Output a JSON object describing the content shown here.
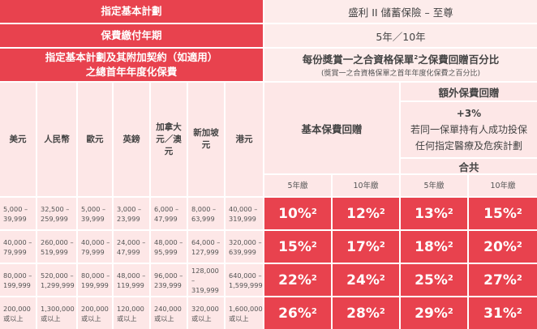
{
  "header": {
    "plan_label": "指定基本計劃",
    "plan_value": "盛利 II 儲蓄保險 – 至尊",
    "term_label": "保費繳付年期",
    "term_value": "5年／10年",
    "premium_label_line1": "指定基本計劃及其附加契約（如適用）",
    "premium_label_line2": "之總首年年度化保費",
    "rebate_title": "每份獎賞一之合資格保單",
    "rebate_title_sup": "2",
    "rebate_title_tail": "之保費回贈百分比",
    "rebate_subtitle": "(獎賞一之合資格保單之首年年度化保費之百分比)"
  },
  "currencies": [
    "美元",
    "人民幣",
    "歐元",
    "英鎊",
    "加拿大元／澳元",
    "新加坡元",
    "港元"
  ],
  "columns": {
    "basic_rebate": "基本保費回贈",
    "extra_rebate": "額外保費回贈",
    "extra_plus": "+3%",
    "extra_desc_line1": "若同一保單持有人成功投保",
    "extra_desc_line2": "任何指定醫療及危疾計劃",
    "total": "合共",
    "term5": "5年繳",
    "term10": "10年繳"
  },
  "rows": [
    {
      "ranges": [
        [
          "5,000 –",
          "39,999"
        ],
        [
          "32,500 –",
          "259,999"
        ],
        [
          "5,000 –",
          "39,999"
        ],
        [
          "3,000 –",
          "23,999"
        ],
        [
          "6,000 –",
          "47,999"
        ],
        [
          "8,000 –",
          "63,999"
        ],
        [
          "40,000 –",
          "319,999"
        ]
      ],
      "rates": [
        "10%",
        "12%",
        "13%",
        "15%"
      ],
      "sup": "2"
    },
    {
      "ranges": [
        [
          "40,000 –",
          "79,999"
        ],
        [
          "260,000 –",
          "519,999"
        ],
        [
          "40,000 –",
          "79,999"
        ],
        [
          "24,000 –",
          "47,999"
        ],
        [
          "48,000 –",
          "95,999"
        ],
        [
          "64,000 –",
          "127,999"
        ],
        [
          "320,000 –",
          "639,999"
        ]
      ],
      "rates": [
        "15%",
        "17%",
        "18%",
        "20%"
      ],
      "sup": "2"
    },
    {
      "ranges": [
        [
          "80,000 –",
          "199,999"
        ],
        [
          "520,000 –",
          "1,299,999"
        ],
        [
          "80,000 –",
          "199,999"
        ],
        [
          "48,000 –",
          "119,999"
        ],
        [
          "96,000 –",
          "239,999"
        ],
        [
          "128,000 –",
          "319,999"
        ],
        [
          "640,000 –",
          "1,599,999"
        ]
      ],
      "rates": [
        "22%",
        "24%",
        "25%",
        "27%"
      ],
      "sup": "2"
    },
    {
      "ranges": [
        [
          "200,000",
          "或以上"
        ],
        [
          "1,300,000",
          "或以上"
        ],
        [
          "200,000",
          "或以上"
        ],
        [
          "120,000",
          "或以上"
        ],
        [
          "240,000",
          "或以上"
        ],
        [
          "320,000",
          "或以上"
        ],
        [
          "1,600,000",
          "或以上"
        ]
      ],
      "rates": [
        "26%",
        "28%",
        "29%",
        "31%"
      ],
      "sup": "2"
    }
  ]
}
